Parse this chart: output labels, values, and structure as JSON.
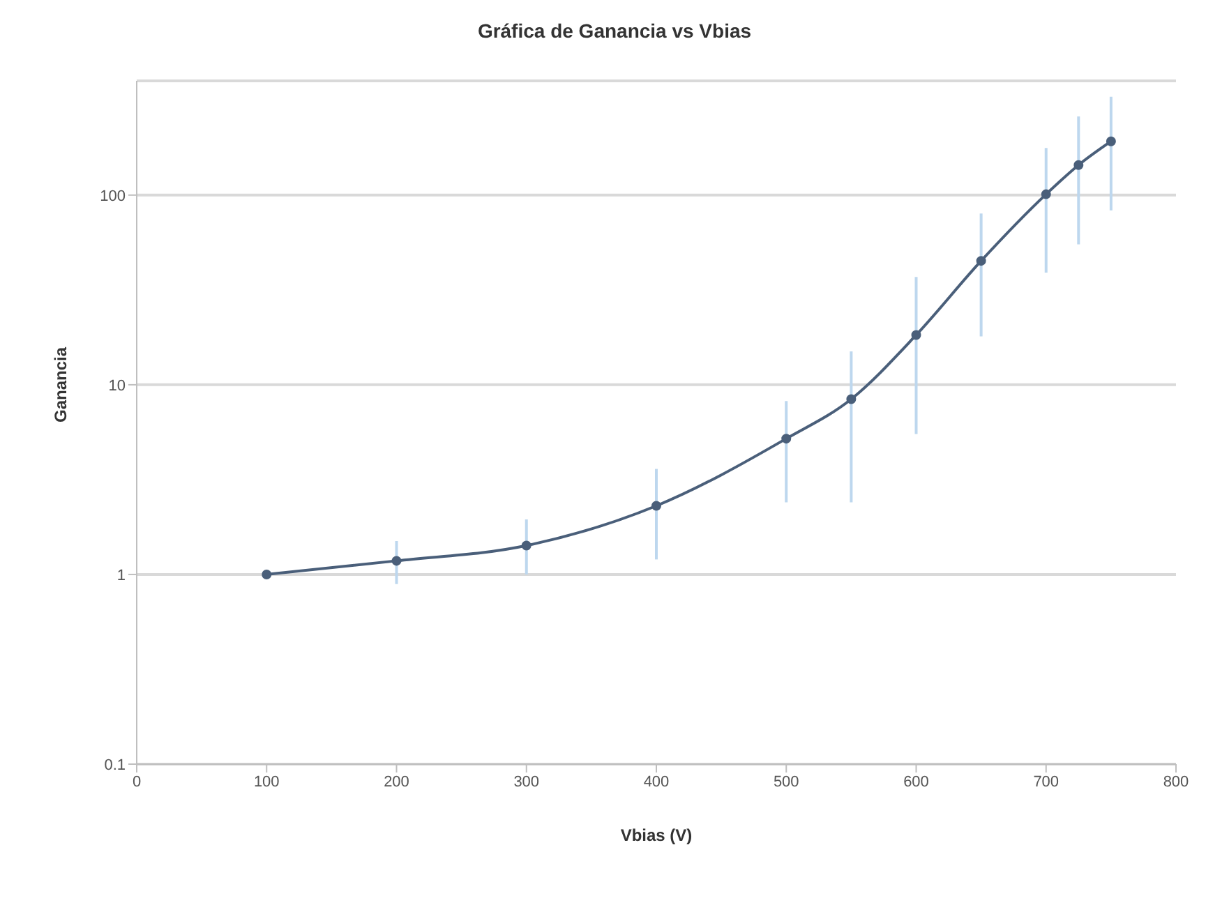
{
  "chart_data": {
    "type": "line",
    "title": "Gráfica de Ganancia vs Vbias",
    "xlabel": "Vbias (V)",
    "ylabel": "Ganancia",
    "x": [
      100,
      200,
      300,
      400,
      500,
      550,
      600,
      650,
      700,
      725,
      750
    ],
    "series": [
      {
        "color": "#4a5f7a",
        "values": [
          1.0,
          1.18,
          1.42,
          2.3,
          5.2,
          8.4,
          18.3,
          45,
          101,
          144,
          192
        ],
        "errors": [
          null,
          [
            0.89,
            1.5
          ],
          [
            1.0,
            1.95
          ],
          [
            1.2,
            3.6
          ],
          [
            2.4,
            8.2
          ],
          [
            2.4,
            15
          ],
          [
            5.5,
            37
          ],
          [
            18,
            80
          ],
          [
            39,
            177
          ],
          [
            55,
            260
          ],
          [
            83,
            330
          ]
        ]
      }
    ],
    "xlim": [
      0,
      800
    ],
    "xticks": [
      0,
      100,
      200,
      300,
      400,
      500,
      600,
      700,
      800
    ],
    "ylim": [
      0.1,
      400
    ],
    "yticks": [
      0.1,
      1,
      10,
      100
    ],
    "log": "y",
    "grid": "y",
    "marker": "circle",
    "line_style": "solid"
  }
}
